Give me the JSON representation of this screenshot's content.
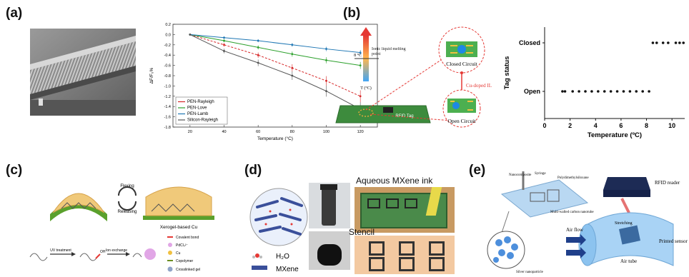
{
  "panels": {
    "a": {
      "label": "(a)",
      "chart_data": {
        "type": "line",
        "xlabel": "Temperature (°C)",
        "ylabel": "ΔF/F₀%",
        "xlim": [
          10,
          130
        ],
        "ylim": [
          -1.8,
          0.2
        ],
        "xticks": [
          20,
          40,
          60,
          80,
          100,
          120
        ],
        "yticks": [
          0.2,
          0.0,
          -0.2,
          -0.4,
          -0.6,
          -0.8,
          -1.0,
          -1.2,
          -1.4,
          -1.6,
          -1.8
        ],
        "legend_position": "bottom-left",
        "series": [
          {
            "name": "PEN-Rayleigh",
            "color": "#d62728",
            "x": [
              20,
              40,
              60,
              80,
              100,
              120
            ],
            "y": [
              0.0,
              -0.2,
              -0.4,
              -0.65,
              -0.9,
              -1.2
            ]
          },
          {
            "name": "PEN-Love",
            "color": "#2ca02c",
            "x": [
              20,
              40,
              60,
              80,
              100,
              120
            ],
            "y": [
              0.0,
              -0.12,
              -0.25,
              -0.38,
              -0.5,
              -0.6
            ]
          },
          {
            "name": "PEN-Lamb",
            "color": "#1f77b4",
            "x": [
              20,
              40,
              60,
              80,
              100,
              120
            ],
            "y": [
              0.0,
              -0.06,
              -0.12,
              -0.2,
              -0.28,
              -0.35
            ]
          },
          {
            "name": "Silicon-Rayleigh",
            "color": "#555555",
            "x": [
              20,
              40,
              60,
              80,
              100,
              120
            ],
            "y": [
              0.0,
              -0.32,
              -0.55,
              -0.8,
              -1.1,
              -1.45
            ]
          }
        ]
      }
    },
    "b": {
      "label": "(b)",
      "schematic": {
        "scale_top": "8 °C",
        "scale_side": "Ionic liquid melting point",
        "scale_bottom": "T (°C)",
        "closed_circuit": "Closed Circuit",
        "open_circuit": "Open Circuit",
        "dopant": "Cu-doped IL",
        "tag": "RFID Tag"
      },
      "chart_data": {
        "type": "scatter",
        "xlabel": "Temperature (ºC)",
        "ylabel": "Tag status",
        "xlim": [
          0,
          11
        ],
        "xticks": [
          0,
          2,
          4,
          6,
          8,
          10
        ],
        "categories_y": [
          "Open",
          "Closed"
        ],
        "series": [
          {
            "x": [
              1.4,
              1.6,
              2.2,
              2.7,
              3.2,
              3.7,
              4.2,
              4.7,
              5.2,
              5.7,
              6.2,
              6.7,
              7.2,
              7.7,
              8.2
            ],
            "y": [
              "Open",
              "Open",
              "Open",
              "Open",
              "Open",
              "Open",
              "Open",
              "Open",
              "Open",
              "Open",
              "Open",
              "Open",
              "Open",
              "Open",
              "Open"
            ]
          },
          {
            "x": [
              8.5,
              8.8,
              9.3,
              9.7,
              10.3,
              10.6,
              10.9
            ],
            "y": [
              "Closed",
              "Closed",
              "Closed",
              "Closed",
              "Closed",
              "Closed",
              "Closed"
            ]
          }
        ]
      }
    },
    "c": {
      "label": "(c)",
      "flexing": "Flexing",
      "releasing": "Releasing",
      "xerogel": "Xerogel-based Cu",
      "uv": "UV treatment",
      "ion": "Ion exchange",
      "oh": "OH",
      "legend": [
        "Covalent bond",
        "PdCl₄²⁻",
        "Cu",
        "Copolymer",
        "Crosslinked gel"
      ]
    },
    "d": {
      "label": "(d)",
      "ink": "Aqueous MXene ink",
      "stencil": "Stencil",
      "h2o": "H₂O",
      "mxene": "MXene"
    },
    "e": {
      "label": "(e)",
      "nanocomposite": "Nanocomposite",
      "syringe": "Syringe",
      "pdms": "Polydimethylsiloxane",
      "mwcnt": "Multi-walled carbon nanotube",
      "silver": "Silver nanoparticle",
      "rfid_reader": "RFID reader",
      "stretching": "Stretching",
      "air_flow": "Air flow",
      "air_tube": "Air tube",
      "printed_sensor": "Printed sensor"
    }
  }
}
